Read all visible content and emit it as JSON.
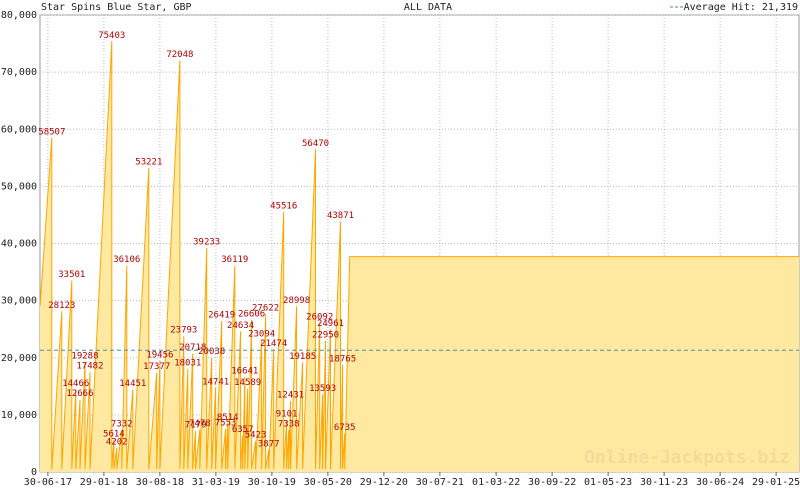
{
  "chart_data": {
    "type": "area",
    "title": "Star Spins Blue Star, GBP",
    "subtitle": "ALL DATA",
    "average_line": {
      "value": 21319,
      "label": "Average Hit: 21,319",
      "color": "#5b8a9a"
    },
    "watermark": "Online-Jackpots.biz",
    "line_color": "#ffa500",
    "fill_color": "#ffe9a0",
    "x": [
      "31-05-17",
      "15-07-17",
      "15-07-17",
      "22-08-17",
      "22-08-17",
      "29-09-17",
      "29-09-17",
      "14-10-17",
      "14-10-17",
      "30-10-17",
      "30-10-17",
      "18-11-17",
      "18-11-17",
      "07-12-17",
      "07-12-17",
      "28-02-18",
      "28-02-18",
      "08-03-18",
      "08-03-18",
      "19-03-18",
      "19-03-18",
      "07-04-18",
      "07-04-18",
      "26-04-18",
      "26-04-18",
      "19-05-18",
      "19-05-18",
      "19-07-18",
      "19-07-18",
      "18-08-18",
      "18-08-18",
      "30-08-18",
      "30-08-18",
      "14-11-18",
      "14-11-18",
      "29-11-18",
      "29-11-18",
      "14-12-18",
      "14-12-18",
      "02-01-19",
      "02-01-19",
      "13-01-19",
      "13-01-19",
      "29-01-19",
      "29-01-19",
      "24-02-19",
      "24-02-19",
      "15-03-19",
      "15-03-19",
      "30-03-19",
      "30-03-19",
      "22-04-19",
      "22-04-19",
      "07-05-19",
      "07-05-19",
      "15-05-19",
      "15-05-19",
      "11-06-19",
      "11-06-19",
      "03-07-19",
      "03-07-19",
      "11-07-19",
      "11-07-19",
      "19-07-19",
      "19-07-19",
      "30-07-19",
      "30-07-19",
      "14-08-19",
      "14-08-19",
      "29-08-19",
      "29-08-19",
      "21-09-19",
      "21-09-19",
      "06-10-19",
      "06-10-19",
      "18-10-19",
      "18-10-19",
      "06-11-19",
      "06-11-19",
      "14-12-19",
      "14-12-19",
      "25-12-19",
      "25-12-19",
      "02-01-20",
      "02-01-20",
      "09-01-20",
      "09-01-20",
      "01-02-20",
      "01-02-20",
      "24-02-20",
      "24-02-20",
      "13-04-20",
      "13-04-20",
      "29-04-20",
      "29-04-20",
      "10-05-20",
      "10-05-20",
      "21-05-20",
      "21-05-20",
      "09-06-20",
      "09-06-20",
      "17-07-20",
      "17-07-20",
      "25-07-20",
      "25-07-20",
      "02-08-20",
      "02-08-20",
      "21-08-20",
      "26-04-25"
    ],
    "values": [
      29000,
      58507,
      500,
      28123,
      500,
      33501,
      500,
      14466,
      500,
      12666,
      500,
      19288,
      500,
      17482,
      500,
      75403,
      500,
      5614,
      500,
      4202,
      500,
      7332,
      500,
      36106,
      500,
      14451,
      500,
      53221,
      500,
      17377,
      500,
      19456,
      500,
      72048,
      500,
      23793,
      500,
      18031,
      500,
      20718,
      500,
      7179,
      500,
      7478,
      500,
      39233,
      500,
      20038,
      500,
      14741,
      500,
      26419,
      500,
      7553,
      500,
      8514,
      500,
      36119,
      500,
      24634,
      500,
      6357,
      500,
      16641,
      500,
      14589,
      500,
      26606,
      500,
      5423,
      500,
      23094,
      500,
      27622,
      500,
      3877,
      500,
      21474,
      500,
      45516,
      500,
      9101,
      500,
      7338,
      500,
      12431,
      500,
      28998,
      500,
      19185,
      500,
      56470,
      500,
      26092,
      500,
      13593,
      500,
      22950,
      500,
      24961,
      500,
      43871,
      500,
      18765,
      500,
      6735,
      500,
      37700,
      37700
    ],
    "xlim": [
      "31-05-17",
      "26-04-25"
    ],
    "xticks": [
      "30-06-17",
      "29-01-18",
      "30-08-18",
      "31-03-19",
      "30-10-19",
      "30-05-20",
      "29-12-20",
      "30-07-21",
      "01-03-22",
      "30-09-22",
      "01-05-23",
      "30-11-23",
      "30-06-24",
      "29-01-25"
    ],
    "ylim": [
      0,
      80000
    ],
    "yticks": [
      0,
      {
        "value": 10000,
        "label": "10,000"
      },
      {
        "value": 20000,
        "label": "20,000"
      },
      {
        "value": 30000,
        "label": "30,000"
      },
      {
        "value": 40000,
        "label": "40,000"
      },
      {
        "value": 50000,
        "label": "50,000"
      },
      {
        "value": 60000,
        "label": "60,000"
      },
      {
        "value": 70000,
        "label": "70,000"
      },
      {
        "value": 80000,
        "label": "80,000"
      }
    ],
    "grid": true
  }
}
